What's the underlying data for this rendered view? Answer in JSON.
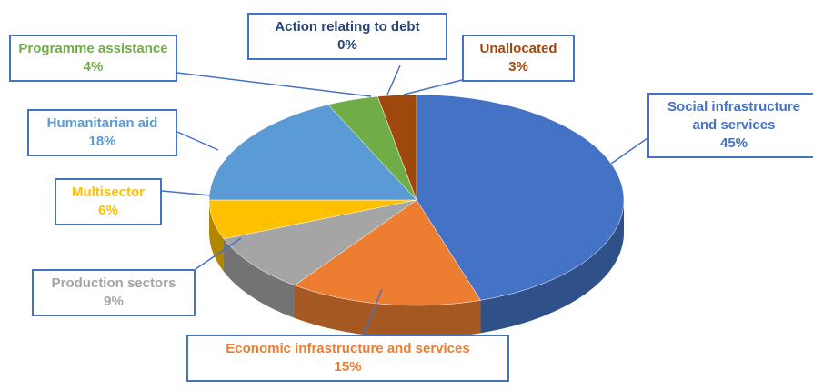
{
  "chart_data": {
    "type": "pie",
    "categories": [
      "Social infrastructure and services",
      "Economic infrastructure and services",
      "Production sectors",
      "Multisector",
      "Humanitarian aid",
      "Programme assistance",
      "Action relating to debt",
      "Unallocated"
    ],
    "values": [
      45,
      15,
      9,
      6,
      18,
      4,
      0,
      3
    ],
    "value_labels": [
      "45%",
      "15%",
      "9%",
      "6%",
      "18%",
      "4%",
      "0%",
      "3%"
    ],
    "colors": [
      "#4472c4",
      "#ed7d31",
      "#a5a5a5",
      "#ffc000",
      "#5b9bd5",
      "#70ad47",
      "#264478",
      "#9e480e"
    ]
  }
}
